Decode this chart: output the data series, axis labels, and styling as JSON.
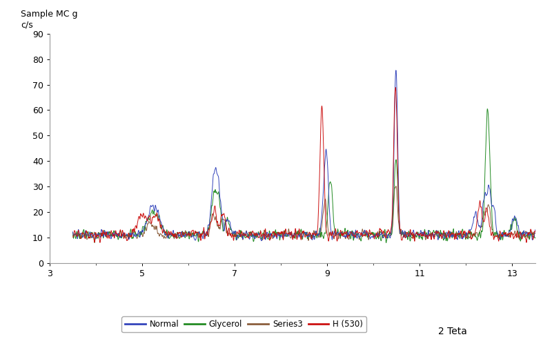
{
  "ylabel": "Sample MC g\nc/s",
  "xlabel": "2 Teta",
  "xlim": [
    3,
    13.5
  ],
  "ylim": [
    0,
    90
  ],
  "xticks": [
    3,
    5,
    7,
    9,
    11,
    13
  ],
  "yticks": [
    0,
    10,
    20,
    30,
    40,
    50,
    60,
    70,
    80,
    90
  ],
  "colors": {
    "Normal": "#3344BB",
    "Glycerol": "#228B22",
    "Series3": "#8B5E3C",
    "H530": "#CC1111"
  },
  "legend_labels": [
    "Normal",
    "Glycerol",
    "Series3",
    "H (530)"
  ],
  "background": "#FFFFFF",
  "x_start": 3.5,
  "x_end": 13.5,
  "n_points": 2000
}
